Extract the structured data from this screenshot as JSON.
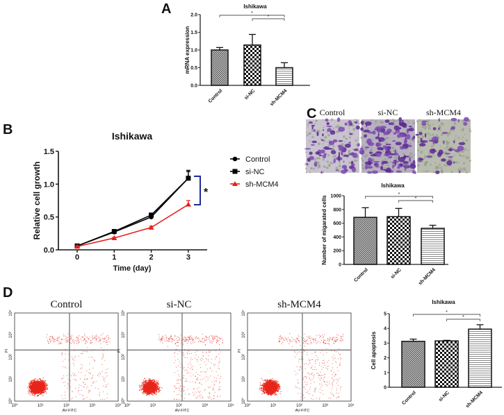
{
  "panel_labels": [
    "A",
    "B",
    "C",
    "D"
  ],
  "chart_data": [
    {
      "type": "bar",
      "title": "Ishikawa",
      "ylabel": "mRNA expression",
      "xlabel": "",
      "categories": [
        "Control",
        "si-NC",
        "sh-MCM4"
      ],
      "values": [
        1.0,
        1.14,
        0.5
      ],
      "errors": [
        0.07,
        0.3,
        0.14
      ],
      "ylim": [
        0,
        2.0
      ],
      "yticks": [
        "2.0",
        "1.5",
        "1.0",
        "0.5",
        "0.0"
      ],
      "yticks_values": [
        2.0,
        1.5,
        1.0,
        0.5,
        0.0
      ],
      "significance": [
        {
          "from": 0,
          "to": 2,
          "label": "*"
        },
        {
          "from": 1,
          "to": 2,
          "label": "*"
        }
      ]
    },
    {
      "type": "line",
      "title": "Ishikawa",
      "ylabel": "Relative cell growth",
      "xlabel": "Time (day)",
      "x": [
        0,
        1,
        2,
        3
      ],
      "xticks": [
        "0",
        "1",
        "2",
        "3"
      ],
      "yticks": [
        "1.5",
        "1.0",
        "0.5",
        "0.0"
      ],
      "yticks_values": [
        1.5,
        1.0,
        0.5,
        0.0
      ],
      "ylim": [
        0,
        1.5
      ],
      "series": [
        {
          "name": "Control",
          "values": [
            0.06,
            0.27,
            0.5,
            1.09
          ],
          "errors": [
            0.01,
            0.02,
            0.02,
            0.12
          ],
          "color": "#000000",
          "marker": "circle"
        },
        {
          "name": "si-NC",
          "values": [
            0.06,
            0.28,
            0.53,
            1.09
          ],
          "errors": [
            0.01,
            0.02,
            0.02,
            0.1
          ],
          "color": "#000000",
          "marker": "square"
        },
        {
          "name": "sh-MCM4",
          "values": [
            0.05,
            0.18,
            0.34,
            0.69
          ],
          "errors": [
            0.01,
            0.01,
            0.02,
            0.06
          ],
          "color": "#e8201e",
          "marker": "triangle"
        }
      ],
      "annotation": "*",
      "annotation_color": "#1a2a9a",
      "legend": "right"
    },
    {
      "type": "bar",
      "title": "Ishikawa",
      "ylabel": "Number of migarated cells",
      "xlabel": "",
      "categories": [
        "Control",
        "si-NC",
        "sh-MCM4"
      ],
      "values": [
        685,
        695,
        525
      ],
      "errors": [
        140,
        120,
        45
      ],
      "ylim": [
        0,
        1000
      ],
      "yticks": [
        "1000",
        "800",
        "600",
        "400",
        "200",
        "0"
      ],
      "yticks_values": [
        1000,
        800,
        600,
        400,
        200,
        0
      ],
      "significance": [
        {
          "from": 0,
          "to": 2,
          "label": "*"
        },
        {
          "from": 1,
          "to": 2,
          "label": "*"
        }
      ]
    },
    {
      "type": "bar",
      "title": "Ishikawa",
      "ylabel": "Cell apoptosis",
      "xlabel": "",
      "categories": [
        "Control",
        "si-NC",
        "sh-MCM4"
      ],
      "values": [
        3.12,
        3.15,
        3.95
      ],
      "errors": [
        0.15,
        0.04,
        0.3
      ],
      "ylim": [
        0,
        5
      ],
      "yticks": [
        "5",
        "4",
        "3",
        "2",
        "1",
        "0"
      ],
      "yticks_values": [
        5,
        4,
        3,
        2,
        1,
        0
      ],
      "significance": [
        {
          "from": 0,
          "to": 2,
          "label": "*"
        },
        {
          "from": 1,
          "to": 2,
          "label": "*"
        }
      ]
    }
  ],
  "migration_images": {
    "labels": [
      "Control",
      "si-NC",
      "sh-MCM4"
    ]
  },
  "flow_cytometry": {
    "titles": [
      "Control",
      "si-NC",
      "sh-MCM4"
    ],
    "xlabel": "AV-FITC",
    "ylabel": "PI",
    "ticks": [
      "10⁰",
      "10¹",
      "10²",
      "10³",
      "10⁴"
    ],
    "point_color": "#e8261b"
  }
}
